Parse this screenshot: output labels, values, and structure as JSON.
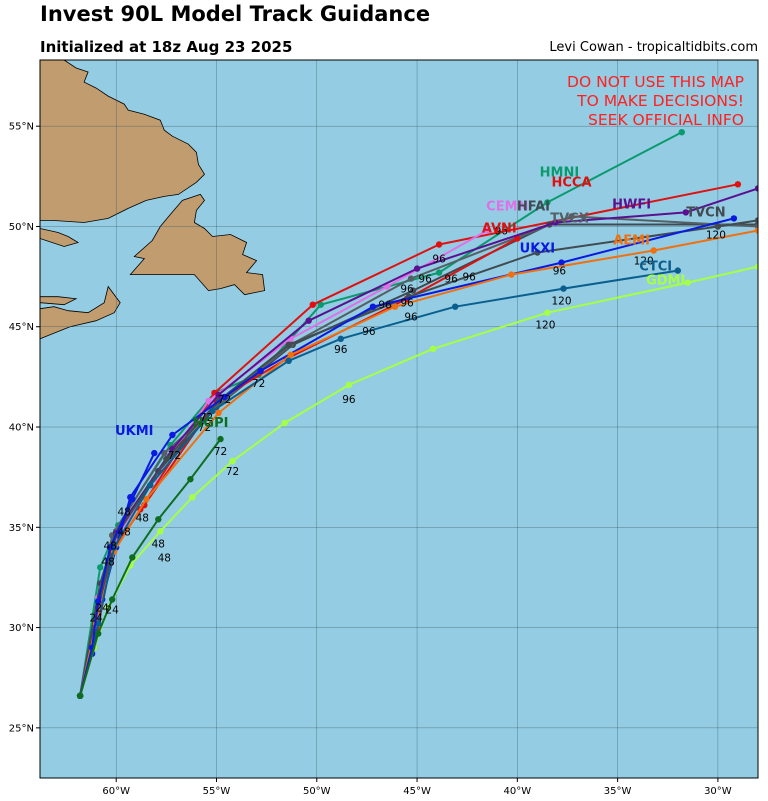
{
  "header": {
    "title": "Invest 90L Model Track Guidance",
    "subtitle": "Initialized at 18z Aug 23 2025",
    "credit": "Levi Cowan - tropicaltidbits.com"
  },
  "warning": [
    "DO NOT USE THIS MAP",
    "TO MAKE DECISIONS!",
    "SEEK OFFICIAL INFO"
  ],
  "colors": {
    "ocean": "#94cde3",
    "land": "#c09c6e",
    "grid": "#3a5a66",
    "warning": "#ff2020"
  },
  "axes": {
    "lon_ticks": [
      {
        "lon": -60,
        "label": "60°W"
      },
      {
        "lon": -55,
        "label": "55°W"
      },
      {
        "lon": -50,
        "label": "50°W"
      },
      {
        "lon": -45,
        "label": "45°W"
      },
      {
        "lon": -40,
        "label": "40°W"
      },
      {
        "lon": -35,
        "label": "35°W"
      },
      {
        "lon": -30,
        "label": "30°W"
      }
    ],
    "lat_ticks": [
      {
        "lat": 25,
        "label": "25°N"
      },
      {
        "lat": 30,
        "label": "30°N"
      },
      {
        "lat": 35,
        "label": "35°N"
      },
      {
        "lat": 40,
        "label": "40°N"
      },
      {
        "lat": 45,
        "label": "45°N"
      },
      {
        "lat": 50,
        "label": "50°N"
      },
      {
        "lat": 55,
        "label": "55°N"
      }
    ],
    "lon_range": [
      -63.8,
      -28.0
    ],
    "lat_range": [
      22.5,
      58.3
    ]
  },
  "chart_data": {
    "type": "map",
    "models": [
      {
        "name": "HMNI",
        "color": "#0a9a6e",
        "label_at": [
          -37.9,
          52.5
        ],
        "track": [
          [
            -61.8,
            26.6
          ],
          [
            -60.8,
            33.0
          ],
          [
            -59.9,
            35.1
          ],
          [
            -57.3,
            39.1
          ],
          [
            -55.1,
            41.7
          ],
          [
            -52.9,
            42.6
          ],
          [
            -49.8,
            46.1
          ],
          [
            -43.9,
            47.7
          ],
          [
            -38.5,
            51.2
          ],
          [
            -31.8,
            54.7
          ]
        ]
      },
      {
        "name": "HCCA",
        "color": "#e01010",
        "label_at": [
          -37.3,
          52.0
        ],
        "track": [
          [
            -61.8,
            26.6
          ],
          [
            -61.1,
            29.0
          ],
          [
            -60.2,
            33.7
          ],
          [
            -58.8,
            35.9
          ],
          [
            -55.1,
            41.7
          ],
          [
            -50.2,
            46.1
          ],
          [
            -43.9,
            49.1
          ],
          [
            -29.0,
            52.1
          ]
        ]
      },
      {
        "name": "CEMN",
        "color": "#e070e8",
        "label_at": [
          -40.5,
          50.8
        ],
        "track": [
          [
            -61.8,
            26.6
          ],
          [
            -60.9,
            31.5
          ],
          [
            -60.0,
            34.5
          ],
          [
            -58.1,
            37.4
          ],
          [
            -55.4,
            41.3
          ],
          [
            -51.3,
            44.4
          ],
          [
            -46.5,
            47.0
          ],
          [
            -41.5,
            49.8
          ]
        ]
      },
      {
        "name": "HFAI",
        "color": "#3e4a54",
        "label_at": [
          -39.2,
          50.8
        ],
        "track": [
          [
            -61.8,
            26.6
          ],
          [
            -60.8,
            32.2
          ],
          [
            -60.0,
            34.8
          ],
          [
            -57.9,
            37.8
          ],
          [
            -55.0,
            41.0
          ],
          [
            -51.2,
            44.1
          ],
          [
            -45.2,
            46.8
          ],
          [
            -38.4,
            50.1
          ],
          [
            -28.0,
            50.1
          ]
        ]
      },
      {
        "name": "TVCX",
        "color": "#556066",
        "label_at": [
          -37.4,
          50.2
        ],
        "track": [
          [
            -61.8,
            26.6
          ],
          [
            -60.7,
            32.0
          ],
          [
            -60.2,
            34.6
          ],
          [
            -57.6,
            38.7
          ],
          [
            -54.8,
            41.2
          ],
          [
            -51.3,
            44.1
          ],
          [
            -45.3,
            47.4
          ],
          [
            -37.3,
            50.5
          ],
          [
            -28.0,
            50.0
          ]
        ]
      },
      {
        "name": "AVNI",
        "color": "#e01010",
        "label_at": [
          -40.9,
          49.7
        ],
        "track": [
          [
            -61.8,
            26.6
          ],
          [
            -61.0,
            30.0
          ],
          [
            -60.1,
            34.0
          ],
          [
            -58.6,
            36.1
          ],
          [
            -55.0,
            41.3
          ],
          [
            -51.5,
            43.4
          ],
          [
            -45.5,
            46.4
          ],
          [
            -40.0,
            49.4
          ]
        ]
      },
      {
        "name": "HWFI",
        "color": "#5a1090",
        "label_at": [
          -34.3,
          50.9
        ],
        "track": [
          [
            -61.8,
            26.6
          ],
          [
            -60.9,
            31.0
          ],
          [
            -60.0,
            34.7
          ],
          [
            -57.2,
            38.9
          ],
          [
            -54.9,
            41.6
          ],
          [
            -50.4,
            45.3
          ],
          [
            -45.0,
            47.9
          ],
          [
            -38.1,
            50.2
          ],
          [
            -31.6,
            50.7
          ],
          [
            -28.0,
            51.9
          ]
        ]
      },
      {
        "name": "TVCN",
        "color": "#404b52",
        "label_at": [
          -30.6,
          50.5
        ],
        "track": [
          [
            -61.8,
            26.6
          ],
          [
            -60.8,
            31.5
          ],
          [
            -60.0,
            34.6
          ],
          [
            -57.5,
            38.4
          ],
          [
            -54.9,
            41.3
          ],
          [
            -51.4,
            44.1
          ],
          [
            -45.4,
            46.5
          ],
          [
            -39.0,
            48.7
          ],
          [
            -30.0,
            50.0
          ],
          [
            -28.0,
            50.3
          ]
        ]
      },
      {
        "name": "UKXI",
        "color": "#0a1ae0",
        "label_at": [
          -39.0,
          48.7
        ],
        "track": [
          [
            -61.8,
            26.6
          ],
          [
            -61.2,
            28.7
          ],
          [
            -60.7,
            31.4
          ],
          [
            -60.0,
            34.0
          ],
          [
            -59.3,
            36.5
          ],
          [
            -57.2,
            39.6
          ],
          [
            -54.6,
            41.5
          ],
          [
            -52.8,
            42.8
          ],
          [
            -47.2,
            46.0
          ],
          [
            -37.8,
            48.2
          ],
          [
            -29.2,
            50.4
          ]
        ]
      },
      {
        "name": "AEMI",
        "color": "#f07010",
        "label_at": [
          -34.3,
          49.1
        ],
        "track": [
          [
            -61.8,
            26.6
          ],
          [
            -61.0,
            30.2
          ],
          [
            -60.1,
            33.8
          ],
          [
            -58.5,
            36.4
          ],
          [
            -54.9,
            40.7
          ],
          [
            -51.3,
            43.6
          ],
          [
            -46.1,
            46.0
          ],
          [
            -40.3,
            47.6
          ],
          [
            -33.2,
            48.8
          ],
          [
            -28.0,
            49.8
          ]
        ]
      },
      {
        "name": "CTCI",
        "color": "#0a5f8e",
        "label_at": [
          -33.1,
          47.8
        ],
        "track": [
          [
            -61.8,
            26.6
          ],
          [
            -60.9,
            30.2
          ],
          [
            -60.1,
            34.0
          ],
          [
            -58.3,
            37.1
          ],
          [
            -55.2,
            40.8
          ],
          [
            -51.4,
            43.3
          ],
          [
            -48.8,
            44.4
          ],
          [
            -43.1,
            46.0
          ],
          [
            -37.7,
            46.9
          ],
          [
            -32.0,
            47.8
          ]
        ]
      },
      {
        "name": "GDMI",
        "color": "#a6ff44",
        "label_at": [
          -32.6,
          47.1
        ],
        "track": [
          [
            -61.8,
            26.6
          ],
          [
            -61.1,
            29.0
          ],
          [
            -60.4,
            31.0
          ],
          [
            -59.3,
            33.1
          ],
          [
            -57.8,
            34.8
          ],
          [
            -56.2,
            36.5
          ],
          [
            -54.2,
            38.3
          ],
          [
            -51.6,
            40.2
          ],
          [
            -48.4,
            42.1
          ],
          [
            -44.2,
            43.9
          ],
          [
            -38.5,
            45.7
          ],
          [
            -31.5,
            47.2
          ],
          [
            -28.0,
            48.0
          ]
        ]
      },
      {
        "name": "UKMI",
        "color": "#0a1ae0",
        "label_at": [
          -59.1,
          39.6
        ],
        "track": [
          [
            -61.8,
            26.6
          ],
          [
            -61.2,
            29.0
          ],
          [
            -60.9,
            31.3
          ],
          [
            -60.3,
            34.0
          ],
          [
            -59.2,
            36.4
          ],
          [
            -58.1,
            38.7
          ]
        ]
      },
      {
        "name": "NGPI",
        "color": "#0e6d20",
        "label_at": [
          -55.3,
          40.0
        ],
        "track": [
          [
            -61.8,
            26.6
          ],
          [
            -60.9,
            29.7
          ],
          [
            -60.2,
            31.4
          ],
          [
            -59.2,
            33.5
          ],
          [
            -57.9,
            35.4
          ],
          [
            -56.3,
            37.4
          ],
          [
            -54.8,
            39.4
          ]
        ]
      }
    ],
    "forecast_hour_labels": [
      {
        "t": "24",
        "at": [
          -60.7,
          30.8
        ]
      },
      {
        "t": "24",
        "at": [
          -60.2,
          30.7
        ]
      },
      {
        "t": "24",
        "at": [
          -61.0,
          30.3
        ]
      },
      {
        "t": "48",
        "at": [
          -58.7,
          35.3
        ]
      },
      {
        "t": "48",
        "at": [
          -59.6,
          35.6
        ]
      },
      {
        "t": "48",
        "at": [
          -59.6,
          34.6
        ]
      },
      {
        "t": "48",
        "at": [
          -60.3,
          33.9
        ]
      },
      {
        "t": "48",
        "at": [
          -60.4,
          33.1
        ]
      },
      {
        "t": "48",
        "at": [
          -57.9,
          34.0
        ]
      },
      {
        "t": "48",
        "at": [
          -57.6,
          33.3
        ]
      },
      {
        "t": "72",
        "at": [
          -54.6,
          41.2
        ]
      },
      {
        "t": "72",
        "at": [
          -55.5,
          40.3
        ]
      },
      {
        "t": "72",
        "at": [
          -55.6,
          39.8
        ]
      },
      {
        "t": "72",
        "at": [
          -52.9,
          42.0
        ]
      },
      {
        "t": "72",
        "at": [
          -57.1,
          38.4
        ]
      },
      {
        "t": "72",
        "at": [
          -54.8,
          38.6
        ]
      },
      {
        "t": "72",
        "at": [
          -54.2,
          37.6
        ]
      },
      {
        "t": "96",
        "at": [
          -43.9,
          48.2
        ]
      },
      {
        "t": "96",
        "at": [
          -40.8,
          49.6
        ]
      },
      {
        "t": "96",
        "at": [
          -44.6,
          47.2
        ]
      },
      {
        "t": "96",
        "at": [
          -45.5,
          46.7
        ]
      },
      {
        "t": "96",
        "at": [
          -45.5,
          46.0
        ]
      },
      {
        "t": "96",
        "at": [
          -46.6,
          45.9
        ]
      },
      {
        "t": "96",
        "at": [
          -45.3,
          45.3
        ]
      },
      {
        "t": "96",
        "at": [
          -43.3,
          47.2
        ]
      },
      {
        "t": "96",
        "at": [
          -42.4,
          47.3
        ]
      },
      {
        "t": "96",
        "at": [
          -47.4,
          44.6
        ]
      },
      {
        "t": "96",
        "at": [
          -48.8,
          43.7
        ]
      },
      {
        "t": "96",
        "at": [
          -48.4,
          41.2
        ]
      },
      {
        "t": "96",
        "at": [
          -37.9,
          47.6
        ]
      },
      {
        "t": "120",
        "at": [
          -30.1,
          49.4
        ]
      },
      {
        "t": "120",
        "at": [
          -33.7,
          48.1
        ]
      },
      {
        "t": "120",
        "at": [
          -37.8,
          46.1
        ]
      },
      {
        "t": "120",
        "at": [
          -38.6,
          44.9
        ]
      }
    ]
  },
  "land": [
    {
      "name": "labrador",
      "pts": [
        [
          -63.8,
          58.3
        ],
        [
          -62.6,
          58.3
        ],
        [
          -62.0,
          57.9
        ],
        [
          -61.4,
          57.7
        ],
        [
          -61.6,
          57.2
        ],
        [
          -61.0,
          56.9
        ],
        [
          -60.4,
          56.5
        ],
        [
          -59.6,
          56.1
        ],
        [
          -59.4,
          55.8
        ],
        [
          -58.6,
          55.6
        ],
        [
          -57.8,
          55.3
        ],
        [
          -57.6,
          54.8
        ],
        [
          -57.2,
          54.5
        ],
        [
          -56.4,
          54.1
        ],
        [
          -56.0,
          53.7
        ],
        [
          -55.9,
          53.1
        ],
        [
          -55.6,
          52.6
        ],
        [
          -56.0,
          52.2
        ],
        [
          -56.9,
          51.6
        ],
        [
          -57.6,
          51.5
        ],
        [
          -58.5,
          51.3
        ],
        [
          -59.4,
          50.9
        ],
        [
          -60.4,
          50.4
        ],
        [
          -61.6,
          50.2
        ],
        [
          -63.2,
          50.3
        ],
        [
          -63.8,
          50.3
        ]
      ]
    },
    {
      "name": "anticosti",
      "pts": [
        [
          -63.8,
          49.9
        ],
        [
          -62.9,
          49.7
        ],
        [
          -62.4,
          49.5
        ],
        [
          -61.9,
          49.2
        ],
        [
          -62.6,
          49.0
        ],
        [
          -63.8,
          49.4
        ]
      ]
    },
    {
      "name": "newfoundland",
      "pts": [
        [
          -59.3,
          47.6
        ],
        [
          -58.6,
          48.4
        ],
        [
          -59.1,
          48.5
        ],
        [
          -58.2,
          49.3
        ],
        [
          -57.8,
          50.0
        ],
        [
          -57.3,
          50.6
        ],
        [
          -56.7,
          51.3
        ],
        [
          -55.8,
          51.6
        ],
        [
          -55.6,
          51.3
        ],
        [
          -56.0,
          50.8
        ],
        [
          -56.1,
          50.2
        ],
        [
          -55.6,
          49.9
        ],
        [
          -55.2,
          49.5
        ],
        [
          -54.3,
          49.6
        ],
        [
          -53.5,
          49.2
        ],
        [
          -53.7,
          48.6
        ],
        [
          -53.0,
          48.3
        ],
        [
          -53.5,
          47.7
        ],
        [
          -52.7,
          47.6
        ],
        [
          -52.6,
          46.8
        ],
        [
          -53.1,
          46.7
        ],
        [
          -53.6,
          46.6
        ],
        [
          -54.1,
          47.1
        ],
        [
          -54.8,
          46.9
        ],
        [
          -55.4,
          46.8
        ],
        [
          -56.1,
          47.6
        ],
        [
          -57.6,
          47.6
        ],
        [
          -59.3,
          47.6
        ]
      ]
    },
    {
      "name": "nova-scotia",
      "pts": [
        [
          -63.8,
          45.9
        ],
        [
          -63.1,
          46.0
        ],
        [
          -62.4,
          45.8
        ],
        [
          -61.4,
          45.7
        ],
        [
          -60.6,
          46.2
        ],
        [
          -60.4,
          47.0
        ],
        [
          -59.8,
          46.2
        ],
        [
          -60.1,
          45.7
        ],
        [
          -61.0,
          45.3
        ],
        [
          -62.3,
          45.0
        ],
        [
          -63.3,
          44.6
        ],
        [
          -63.8,
          44.4
        ]
      ]
    },
    {
      "name": "pei",
      "pts": [
        [
          -63.8,
          46.5
        ],
        [
          -62.9,
          46.5
        ],
        [
          -62.0,
          46.4
        ],
        [
          -62.6,
          46.1
        ],
        [
          -63.8,
          46.2
        ]
      ]
    }
  ]
}
